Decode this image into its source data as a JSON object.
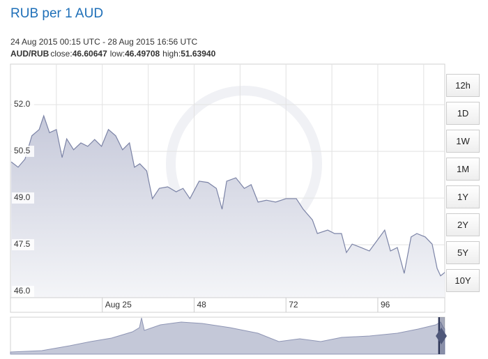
{
  "title": "RUB per 1 AUD",
  "range": "24 Aug 2015 00:15 UTC - 28 Aug 2015 16:56 UTC",
  "stats": {
    "pair": "AUD/RUB",
    "items": [
      {
        "label": "close:",
        "value": "46.60647"
      },
      {
        "label": "low:",
        "value": "46.49708"
      },
      {
        "label": "high:",
        "value": "51.63940"
      }
    ]
  },
  "buttons": [
    "12h",
    "1D",
    "1W",
    "1M",
    "1Y",
    "2Y",
    "5Y",
    "10Y"
  ],
  "chart_data": {
    "type": "area",
    "color": "#7b83a6",
    "grid": true,
    "x": [
      0.2,
      2,
      3.8,
      5.6,
      7.5,
      8.7,
      10.2,
      12,
      13.5,
      14.7,
      16.5,
      18.4,
      20.2,
      22,
      23.8,
      25.6,
      27.5,
      29.3,
      31.1,
      32.4,
      33.8,
      35.6,
      37.1,
      38.9,
      41.1,
      43.3,
      45.1,
      46.9,
      49.3,
      51.6,
      53.8,
      55.3,
      56.5,
      58.9,
      61.1,
      62.9,
      64.7,
      66.9,
      69.3,
      72,
      74.7,
      76.5,
      78.9,
      80.2,
      82.9,
      84.7,
      86.5,
      87.8,
      89.3,
      91.6,
      93.8,
      96.5,
      97.8,
      99.3,
      101.1,
      102.9,
      104.7,
      106.2,
      108.4,
      110.2,
      111.5,
      112.4,
      113.5
    ],
    "values": [
      50.16,
      49.99,
      50.25,
      51.0,
      51.2,
      51.64,
      51.1,
      51.2,
      50.3,
      50.9,
      50.55,
      50.77,
      50.66,
      50.88,
      50.66,
      51.2,
      51.0,
      50.55,
      50.77,
      49.99,
      50.1,
      49.87,
      48.98,
      49.31,
      49.36,
      49.2,
      49.31,
      48.98,
      49.54,
      49.5,
      49.31,
      48.64,
      49.54,
      49.65,
      49.31,
      49.43,
      48.87,
      48.93,
      48.87,
      48.98,
      48.98,
      48.64,
      48.3,
      47.86,
      47.97,
      47.86,
      47.86,
      47.25,
      47.52,
      47.41,
      47.3,
      47.75,
      47.97,
      47.3,
      47.41,
      46.58,
      47.75,
      47.86,
      47.75,
      47.52,
      46.74,
      46.5,
      46.61
    ],
    "xlim": [
      0,
      113.5
    ],
    "xticks": [
      {
        "value": 24,
        "label": "Aug 25"
      },
      48,
      72,
      96
    ],
    "ylim": [
      45.8,
      53.3
    ],
    "yticks": [
      {
        "value": 46,
        "label": "46.0"
      },
      47.5,
      {
        "value": 49,
        "label": "49.0"
      },
      50.5,
      {
        "value": 52,
        "label": "52.0"
      }
    ]
  }
}
